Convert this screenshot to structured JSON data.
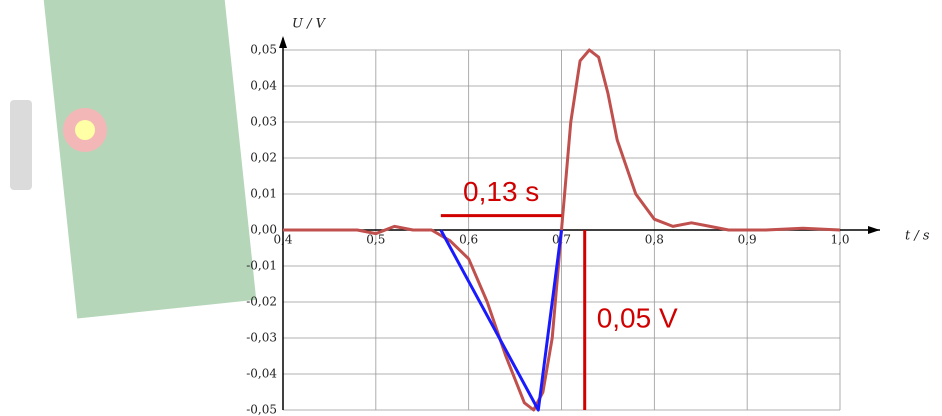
{
  "chart_data": {
    "type": "line",
    "y_label": "U / V",
    "x_label": "t / s",
    "xlim": [
      0.4,
      1.0
    ],
    "ylim": [
      -0.05,
      0.05
    ],
    "xticks": [
      {
        "value": 0.4,
        "label": "0,4"
      },
      {
        "value": 0.5,
        "label": "0,5"
      },
      {
        "value": 0.6,
        "label": "0,6"
      },
      {
        "value": 0.7,
        "label": "0,7"
      },
      {
        "value": 0.8,
        "label": "0,8"
      },
      {
        "value": 0.9,
        "label": "0,9"
      },
      {
        "value": 1.0,
        "label": "1,0"
      }
    ],
    "yticks": [
      {
        "value": -0.05,
        "label": "-0,05"
      },
      {
        "value": -0.04,
        "label": "-0,04"
      },
      {
        "value": -0.03,
        "label": "-0,03"
      },
      {
        "value": -0.02,
        "label": "-0,02"
      },
      {
        "value": -0.01,
        "label": "-0,01"
      },
      {
        "value": 0,
        "label": "0,00"
      },
      {
        "value": 0.01,
        "label": "0,01"
      },
      {
        "value": 0.02,
        "label": "0,02"
      },
      {
        "value": 0.03,
        "label": "0,03"
      },
      {
        "value": 0.04,
        "label": "0,04"
      },
      {
        "value": 0.05,
        "label": "0,05"
      }
    ],
    "grid": true,
    "series": [
      {
        "color": "#c0504d",
        "x": [
          0.4,
          0.48,
          0.5,
          0.52,
          0.54,
          0.56,
          0.58,
          0.6,
          0.62,
          0.64,
          0.66,
          0.67,
          0.68,
          0.69,
          0.7,
          0.71,
          0.72,
          0.73,
          0.74,
          0.75,
          0.76,
          0.78,
          0.8,
          0.82,
          0.84,
          0.86,
          0.88,
          0.92,
          0.96,
          1.0
        ],
        "values": [
          0,
          0,
          -0.001,
          0.001,
          0,
          0,
          -0.003,
          -0.008,
          -0.02,
          -0.035,
          -0.048,
          -0.05,
          -0.045,
          -0.03,
          0,
          0.03,
          0.047,
          0.05,
          0.048,
          0.038,
          0.025,
          0.01,
          0.003,
          0.001,
          0.002,
          0.001,
          0,
          0,
          0.0005,
          0
        ]
      }
    ],
    "triangle": {
      "color": "#1a1aff",
      "x": [
        0.57,
        0.675,
        0.7
      ],
      "values": [
        0,
        -0.05,
        0
      ]
    },
    "annotations": [
      {
        "text": "0,13 s",
        "x": [
          0.57,
          0.7
        ],
        "y": 0.004,
        "color": "#d00000"
      },
      {
        "text": "0,05 V",
        "x": 0.725,
        "y": [
          0,
          -0.05
        ],
        "color": "#d00000"
      }
    ]
  }
}
